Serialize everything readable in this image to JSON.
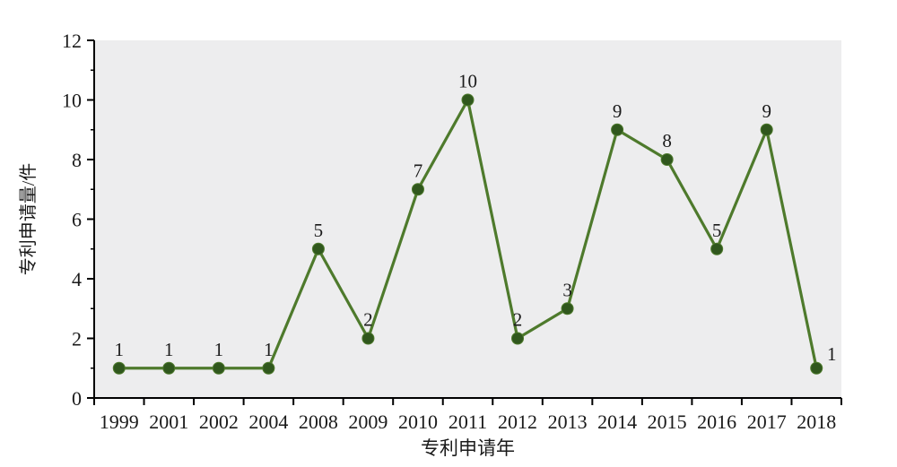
{
  "chart_data": {
    "type": "line",
    "title": "",
    "xlabel": "专利申请年",
    "ylabel": "专利申请量/件",
    "categories": [
      "1999",
      "2001",
      "2002",
      "2004",
      "2008",
      "2009",
      "2010",
      "2011",
      "2012",
      "2013",
      "2014",
      "2015",
      "2016",
      "2017",
      "2018"
    ],
    "values": [
      1,
      1,
      1,
      1,
      5,
      2,
      7,
      10,
      2,
      3,
      9,
      8,
      5,
      9,
      1
    ],
    "point_labels": [
      "1",
      "1",
      "1",
      "1",
      "5",
      "2",
      "7",
      "10",
      "2",
      "3",
      "9",
      "8",
      "5",
      "9",
      "1"
    ],
    "ylim": [
      0,
      12
    ],
    "yticks": [
      0,
      2,
      4,
      6,
      8,
      10,
      12
    ],
    "yticks_minor": [
      1,
      3,
      5,
      7,
      9,
      11
    ],
    "grid": "off",
    "legend": "none",
    "colors": {
      "line": "#4e7a2c",
      "marker": "#30571d",
      "plot_background": "#ededee",
      "axis": "#000000",
      "text": "#1a1a1a"
    }
  }
}
